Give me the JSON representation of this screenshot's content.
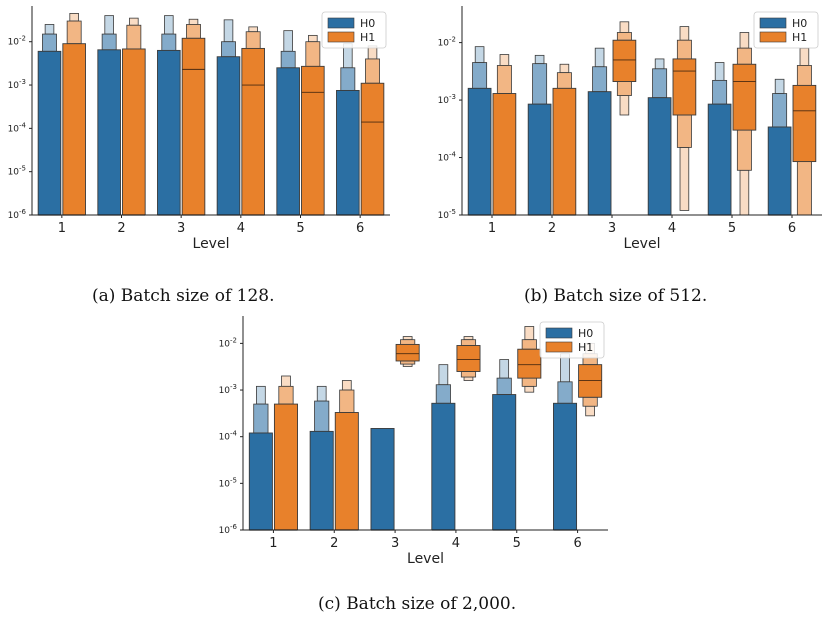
{
  "colors": {
    "H0": "#2b6fa3",
    "H1": "#e8812b",
    "axis": "#222222",
    "outline": "#3a3a3a"
  },
  "chart_data": [
    {
      "type": "boxen",
      "caption": "(a) Batch size of 128.",
      "xlabel": "Level",
      "categories": [
        "1",
        "2",
        "3",
        "4",
        "5",
        "6"
      ],
      "ylim": [
        1e-06,
        0.06
      ],
      "yscale": "log",
      "yticks": [
        {
          "v": 1e-06,
          "label": "10-6"
        },
        {
          "v": 1e-05,
          "label": "10-5"
        },
        {
          "v": 0.0001,
          "label": "10-4"
        },
        {
          "v": 0.001,
          "label": "10-3"
        },
        {
          "v": 0.01,
          "label": "10-2"
        }
      ],
      "legend": {
        "position": "top-right",
        "entries": [
          "H0",
          "H1"
        ]
      },
      "series": [
        {
          "name": "H0",
          "color_key": "H0",
          "boxes": [
            {
              "lo": 1e-06,
              "hi": 0.006,
              "median": null,
              "tiers": [
                0.015,
                0.025
              ]
            },
            {
              "lo": 1e-06,
              "hi": 0.0065,
              "median": null,
              "tiers": [
                0.015,
                0.04
              ]
            },
            {
              "lo": 1e-06,
              "hi": 0.0063,
              "median": null,
              "tiers": [
                0.015,
                0.04
              ]
            },
            {
              "lo": 1e-06,
              "hi": 0.0045,
              "median": null,
              "tiers": [
                0.01,
                0.032
              ]
            },
            {
              "lo": 1e-06,
              "hi": 0.0025,
              "median": null,
              "tiers": [
                0.006,
                0.018
              ]
            },
            {
              "lo": 1e-06,
              "hi": 0.00075,
              "median": null,
              "tiers": [
                0.0025,
                0.009
              ]
            }
          ]
        },
        {
          "name": "H1",
          "color_key": "H1",
          "boxes": [
            {
              "lo": 1e-06,
              "hi": 0.009,
              "median": null,
              "tiers": [
                0.03,
                0.045
              ]
            },
            {
              "lo": 1e-06,
              "hi": 0.0068,
              "median": null,
              "tiers": [
                0.024,
                0.035
              ]
            },
            {
              "lo": 1e-06,
              "hi": 0.012,
              "median": 0.0023,
              "tiers": [
                0.025,
                0.033
              ]
            },
            {
              "lo": 1e-06,
              "hi": 0.007,
              "median": 0.001,
              "tiers": [
                0.017,
                0.022
              ]
            },
            {
              "lo": 1e-06,
              "hi": 0.0027,
              "median": 0.00068,
              "tiers": [
                0.01,
                0.014
              ]
            },
            {
              "lo": 1e-06,
              "hi": 0.0011,
              "median": 0.00014,
              "tiers": [
                0.004,
                0.008
              ]
            }
          ]
        }
      ]
    },
    {
      "type": "boxen",
      "caption": "(b) Batch size of 512.",
      "xlabel": "Level",
      "categories": [
        "1",
        "2",
        "3",
        "4",
        "5",
        "6"
      ],
      "ylim": [
        1e-05,
        0.04
      ],
      "yscale": "log",
      "yticks": [
        {
          "v": 1e-05,
          "label": "10-5"
        },
        {
          "v": 0.0001,
          "label": "10-4"
        },
        {
          "v": 0.001,
          "label": "10-3"
        },
        {
          "v": 0.01,
          "label": "10-2"
        }
      ],
      "legend": {
        "position": "top-right",
        "entries": [
          "H0",
          "H1"
        ]
      },
      "series": [
        {
          "name": "H0",
          "color_key": "H0",
          "boxes": [
            {
              "lo": 1e-05,
              "hi": 0.0016,
              "median": null,
              "tiers": [
                0.0045,
                0.0085
              ]
            },
            {
              "lo": 1e-05,
              "hi": 0.00085,
              "median": null,
              "tiers": [
                0.0043,
                0.006
              ]
            },
            {
              "lo": 1e-05,
              "hi": 0.0014,
              "median": null,
              "tiers": [
                0.0038,
                0.008
              ]
            },
            {
              "lo": 1e-05,
              "hi": 0.0011,
              "median": null,
              "tiers": [
                0.0035,
                0.0052
              ]
            },
            {
              "lo": 1e-05,
              "hi": 0.00085,
              "median": null,
              "tiers": [
                0.0022,
                0.0045
              ]
            },
            {
              "lo": 1e-05,
              "hi": 0.00034,
              "median": null,
              "tiers": [
                0.0013,
                0.0023
              ]
            }
          ]
        },
        {
          "name": "H1",
          "color_key": "H1",
          "boxes": [
            {
              "lo": 1e-05,
              "hi": 0.0013,
              "median": null,
              "tiers": [
                0.004,
                0.0062
              ]
            },
            {
              "lo": 1e-05,
              "hi": 0.0016,
              "median": null,
              "tiers": [
                0.003,
                0.0042
              ]
            },
            {
              "lo": 0.0021,
              "hi": 0.011,
              "median": 0.005,
              "tiers_hi": [
                0.015,
                0.023
              ],
              "tiers_lo": [
                0.0012,
                0.00055
              ]
            },
            {
              "lo": 0.00055,
              "hi": 0.0052,
              "median": 0.0032,
              "tiers_hi": [
                0.011,
                0.019
              ],
              "tiers_lo": [
                0.00015,
                1.2e-05
              ]
            },
            {
              "lo": 0.0003,
              "hi": 0.0042,
              "median": 0.0021,
              "tiers_hi": [
                0.008,
                0.015
              ],
              "tiers_lo": [
                6e-05,
                1e-05
              ]
            },
            {
              "lo": 8.5e-05,
              "hi": 0.0018,
              "median": 0.00065,
              "tiers_hi": [
                0.004,
                0.008
              ],
              "tiers_lo": [
                1e-05
              ]
            }
          ]
        }
      ]
    },
    {
      "type": "boxen",
      "caption": "(c) Batch size of 2,000.",
      "xlabel": "Level",
      "categories": [
        "1",
        "2",
        "3",
        "4",
        "5",
        "6"
      ],
      "ylim": [
        1e-06,
        0.035
      ],
      "yscale": "log",
      "yticks": [
        {
          "v": 1e-06,
          "label": "10-6"
        },
        {
          "v": 1e-05,
          "label": "10-5"
        },
        {
          "v": 0.0001,
          "label": "10-4"
        },
        {
          "v": 0.001,
          "label": "10-3"
        },
        {
          "v": 0.01,
          "label": "10-2"
        }
      ],
      "legend": {
        "position": "top-right",
        "entries": [
          "H0",
          "H1"
        ]
      },
      "series": [
        {
          "name": "H0",
          "color_key": "H0",
          "boxes": [
            {
              "lo": 1e-06,
              "hi": 0.00012,
              "median": null,
              "tiers": [
                0.0005,
                0.0012
              ]
            },
            {
              "lo": 1e-06,
              "hi": 0.00013,
              "median": null,
              "tiers": [
                0.00058,
                0.0012
              ]
            },
            {
              "lo": 1e-06,
              "hi": 0.00015,
              "median": null,
              "tiers": []
            },
            {
              "lo": 1e-06,
              "hi": 0.00052,
              "median": null,
              "tiers": [
                0.0013,
                0.0035
              ]
            },
            {
              "lo": 1e-06,
              "hi": 0.0008,
              "median": null,
              "tiers": [
                0.0018,
                0.0045
              ]
            },
            {
              "lo": 1e-06,
              "hi": 0.00052,
              "median": null,
              "tiers": [
                0.0015,
                0.006
              ]
            }
          ]
        },
        {
          "name": "H1",
          "color_key": "H1",
          "boxes": [
            {
              "lo": 1e-06,
              "hi": 0.0005,
              "median": null,
              "tiers": [
                0.0012,
                0.002
              ]
            },
            {
              "lo": 1e-06,
              "hi": 0.00033,
              "median": null,
              "tiers": [
                0.001,
                0.0016
              ]
            },
            {
              "lo": 0.0042,
              "hi": 0.0095,
              "median": 0.006,
              "tiers_hi": [
                0.012,
                0.014
              ],
              "tiers_lo": [
                0.0036,
                0.0032
              ]
            },
            {
              "lo": 0.0025,
              "hi": 0.009,
              "median": 0.0045,
              "tiers_hi": [
                0.012,
                0.014
              ],
              "tiers_lo": [
                0.0019,
                0.0016
              ]
            },
            {
              "lo": 0.0018,
              "hi": 0.0075,
              "median": 0.0035,
              "tiers_hi": [
                0.012,
                0.023
              ],
              "tiers_lo": [
                0.0012,
                0.0009
              ]
            },
            {
              "lo": 0.0007,
              "hi": 0.0035,
              "median": 0.0016,
              "tiers_hi": [
                0.006,
                0.01
              ],
              "tiers_lo": [
                0.00045,
                0.00028
              ]
            }
          ]
        }
      ]
    }
  ]
}
